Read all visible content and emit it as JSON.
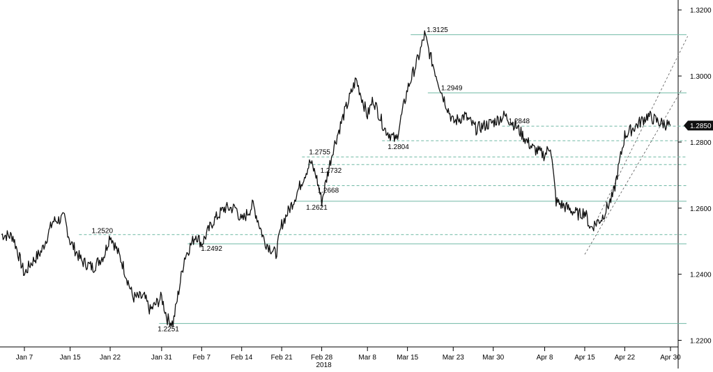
{
  "chart_data": {
    "type": "line",
    "title": "",
    "xlabel": "",
    "ylabel": "",
    "ylim": [
      1.218,
      1.323
    ],
    "y_ticks": [
      "1.3200",
      "1.3000",
      "1.2800",
      "1.2600",
      "1.2400",
      "1.2200"
    ],
    "x_ticks": [
      "Jan 7",
      "Jan 15",
      "Jan 22",
      "Jan 31",
      "Feb 7",
      "Feb 14",
      "Feb 21",
      "Feb 28",
      "Mar 8",
      "Mar 15",
      "Mar 23",
      "Mar 30",
      "Apr 8",
      "Apr 15",
      "Apr 22",
      "Apr 30"
    ],
    "x_year_label": "2018",
    "last_price": "1.2850",
    "series": [
      {
        "x": [
          "Jan 3",
          "Jan 5",
          "Jan 7",
          "Jan 8",
          "Jan 10",
          "Jan 12",
          "Jan 14",
          "Jan 15",
          "Jan 17",
          "Jan 19",
          "Jan 21",
          "Jan 22",
          "Jan 24",
          "Jan 26",
          "Jan 28",
          "Jan 29",
          "Jan 31",
          "Feb 1",
          "Feb 2",
          "Feb 4",
          "Feb 6",
          "Feb 7",
          "Feb 9",
          "Feb 11",
          "Feb 13",
          "Feb 14",
          "Feb 16",
          "Feb 18",
          "Feb 20",
          "Feb 21",
          "Feb 23",
          "Feb 24",
          "Feb 26",
          "Feb 27",
          "Feb 28",
          "Mar 2",
          "Mar 4",
          "Mar 6",
          "Mar 8",
          "Mar 9",
          "Mar 11",
          "Mar 13",
          "Mar 15",
          "Mar 17",
          "Mar 18",
          "Mar 19",
          "Mar 21",
          "Mar 23",
          "Mar 25",
          "Mar 27",
          "Mar 30",
          "Apr 1",
          "Apr 3",
          "Apr 5",
          "Apr 6",
          "Apr 8",
          "Apr 9",
          "Apr 10",
          "Apr 12",
          "Apr 14",
          "Apr 15",
          "Apr 16",
          "Apr 18",
          "Apr 20",
          "Apr 22",
          "Apr 24",
          "Apr 26",
          "Apr 28",
          "Apr 30"
        ],
        "values": [
          1.252,
          1.2515,
          1.24,
          1.243,
          1.247,
          1.256,
          1.257,
          1.25,
          1.244,
          1.242,
          1.246,
          1.252,
          1.244,
          1.233,
          1.233,
          1.229,
          1.233,
          1.2265,
          1.2251,
          1.245,
          1.252,
          1.2492,
          1.256,
          1.26,
          1.26,
          1.256,
          1.261,
          1.25,
          1.246,
          1.255,
          1.262,
          1.266,
          1.274,
          1.27,
          1.2621,
          1.278,
          1.289,
          1.299,
          1.288,
          1.293,
          1.284,
          1.2804,
          1.296,
          1.306,
          1.3125,
          1.306,
          1.2949,
          1.286,
          1.288,
          1.284,
          1.286,
          1.288,
          1.2848,
          1.28,
          1.278,
          1.276,
          1.279,
          1.262,
          1.26,
          1.258,
          1.259,
          1.254,
          1.257,
          1.264,
          1.282,
          1.285,
          1.288,
          1.286,
          1.285
        ]
      }
    ],
    "levels": [
      {
        "label": "1.3125",
        "value": 1.3125,
        "style": "solid",
        "from": "Mar 18"
      },
      {
        "label": "1.2949",
        "value": 1.2949,
        "style": "solid",
        "from": "Mar 21"
      },
      {
        "label": "1.2848",
        "value": 1.2848,
        "style": "dashed",
        "from": "Apr 3"
      },
      {
        "label": "1.2804",
        "value": 1.2804,
        "style": "dashed",
        "from": "Mar 13"
      },
      {
        "label": "1.2755",
        "value": 1.2755,
        "style": "dashed",
        "from": "Feb 27"
      },
      {
        "label": "1.2732",
        "value": 1.2732,
        "style": "dashed",
        "from": "Feb 28"
      },
      {
        "label": "1.2668",
        "value": 1.2668,
        "style": "dashed",
        "from": "Feb 28"
      },
      {
        "label": "1.2621",
        "value": 1.2621,
        "style": "solid",
        "from": "Feb 26"
      },
      {
        "label": "1.2520",
        "value": 1.252,
        "style": "dashed",
        "from": "Jan 19"
      },
      {
        "label": "1.2492",
        "value": 1.2492,
        "style": "solid",
        "from": "Feb 7"
      },
      {
        "label": "1.2251",
        "value": 1.2251,
        "style": "solid",
        "from": "Feb 2"
      }
    ],
    "channel": [
      {
        "from": [
          "Apr 15",
          1.246
        ],
        "to": [
          "May 2",
          1.296
        ]
      },
      {
        "from": [
          "Apr 17",
          1.256
        ],
        "to": [
          "May 3",
          1.312
        ]
      }
    ],
    "grid": false,
    "legend": "none"
  }
}
